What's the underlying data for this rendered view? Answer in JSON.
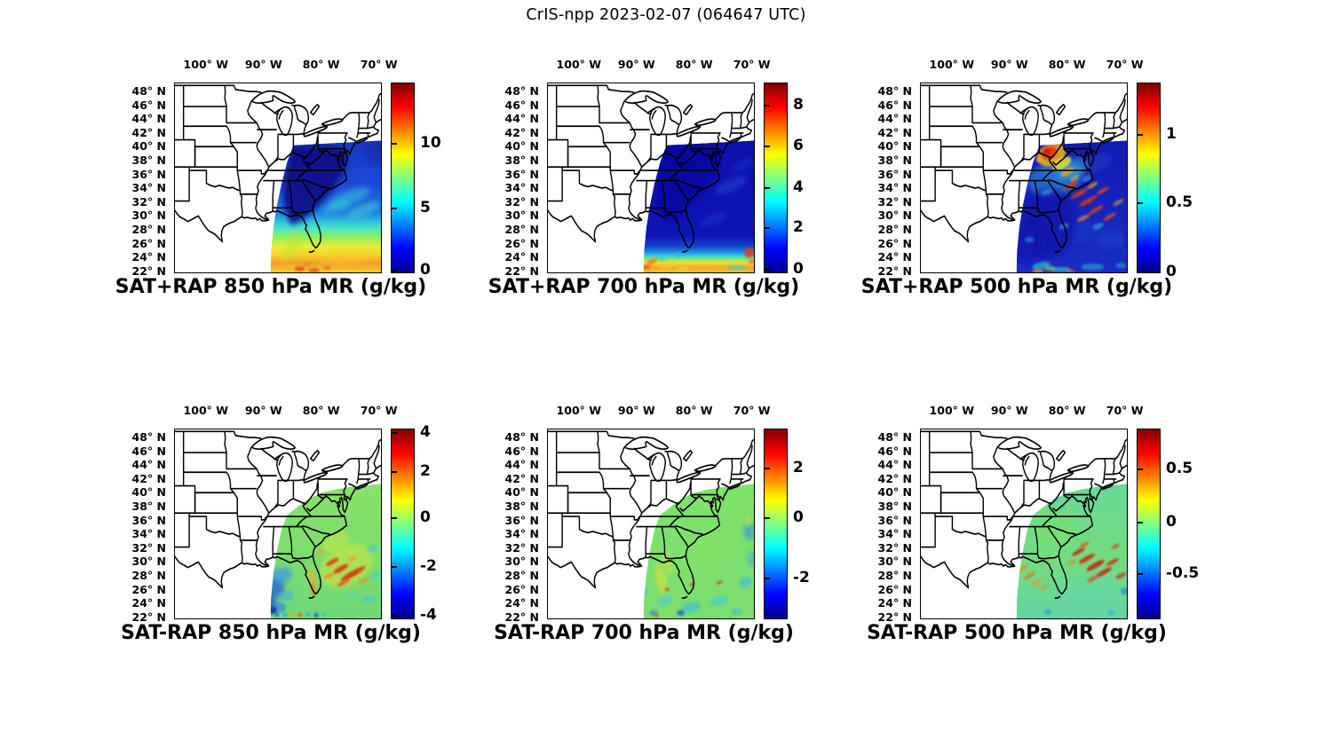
{
  "figure_title": "CrIS-npp 2023-02-07 (064647 UTC)",
  "colormap": {
    "name": "jet",
    "stops": [
      "#00008f",
      "#0000ff",
      "#00ffff",
      "#ffff00",
      "#ff0000",
      "#800000"
    ]
  },
  "axes": {
    "x_ticks": [
      "100° W",
      "90° W",
      "80° W",
      "70° W"
    ],
    "y_ticks": [
      "48° N",
      "46° N",
      "44° N",
      "42° N",
      "40° N",
      "38° N",
      "36° N",
      "34° N",
      "32° N",
      "30° N",
      "28° N",
      "26° N",
      "24° N",
      "22° N"
    ]
  },
  "panels": [
    {
      "id": "sat-plus-rap-850",
      "title": "SAT+RAP 850 hPa MR (g/kg)",
      "colorbar": {
        "ticks": [
          {
            "label": "10",
            "pos": 0.316
          },
          {
            "label": "5",
            "pos": 0.656
          },
          {
            "label": "0",
            "pos": 0.981
          }
        ]
      }
    },
    {
      "id": "sat-plus-rap-700",
      "title": "SAT+RAP 700 hPa MR (g/kg)",
      "colorbar": {
        "ticks": [
          {
            "label": "8",
            "pos": 0.116
          },
          {
            "label": "6",
            "pos": 0.33
          },
          {
            "label": "4",
            "pos": 0.549
          },
          {
            "label": "2",
            "pos": 0.758
          },
          {
            "label": "0",
            "pos": 0.977
          }
        ]
      }
    },
    {
      "id": "sat-plus-rap-500",
      "title": "SAT+RAP 500 hPa MR (g/kg)",
      "colorbar": {
        "ticks": [
          {
            "label": "1",
            "pos": 0.27
          },
          {
            "label": "0.5",
            "pos": 0.628
          },
          {
            "label": "0",
            "pos": 0.991
          }
        ]
      }
    },
    {
      "id": "sat-minus-rap-850",
      "title": "SAT-RAP 850 hPa MR (g/kg)",
      "colorbar": {
        "ticks": [
          {
            "label": "4",
            "pos": 0.017
          },
          {
            "label": "2",
            "pos": 0.223
          },
          {
            "label": "0",
            "pos": 0.465
          },
          {
            "label": "-2",
            "pos": 0.721
          },
          {
            "label": "-4",
            "pos": 0.977
          }
        ]
      }
    },
    {
      "id": "sat-minus-rap-700",
      "title": "SAT-RAP 700 hPa MR (g/kg)",
      "colorbar": {
        "ticks": [
          {
            "label": "2",
            "pos": 0.205
          },
          {
            "label": "0",
            "pos": 0.465
          },
          {
            "label": "-2",
            "pos": 0.781
          }
        ]
      }
    },
    {
      "id": "sat-minus-rap-500",
      "title": "SAT-RAP 500 hPa MR (g/kg)",
      "colorbar": {
        "ticks": [
          {
            "label": "0.5",
            "pos": 0.209
          },
          {
            "label": "0",
            "pos": 0.488
          },
          {
            "label": "-0.5",
            "pos": 0.758
          }
        ]
      }
    }
  ],
  "chart_data": [
    {
      "type": "heatmap",
      "title": "SAT+RAP 850 hPa MR (g/kg)",
      "level_hPa": 850,
      "quantity": "water vapor mixing ratio",
      "units": "g/kg",
      "x_axis": {
        "ticks_deg_west": [
          100,
          90,
          80,
          70
        ],
        "range_deg_west": [
          105.5,
          69.5
        ]
      },
      "y_axis": {
        "ticks_deg_north": [
          48,
          46,
          44,
          42,
          40,
          38,
          36,
          34,
          32,
          30,
          28,
          26,
          24,
          22
        ],
        "range_deg_north": [
          21.7,
          49.3
        ]
      },
      "colorbar": {
        "colormap": "jet",
        "ticks": [
          0,
          5,
          10
        ],
        "range_approx": [
          0,
          15
        ],
        "position": "right"
      },
      "features": "CrIS swath over eastern US and western Atlantic; ~0-2 g/kg (dark blue) over Ohio valley and Appalachians, 3-6 g/kg (cyan) over mid-latitude Atlantic, rising to 8-12 g/kg (yellow/orange with red arcs) south of ~27N near Florida and the Gulf Stream."
    },
    {
      "type": "heatmap",
      "title": "SAT+RAP 700 hPa MR (g/kg)",
      "level_hPa": 700,
      "quantity": "water vapor mixing ratio",
      "units": "g/kg",
      "x_axis": {
        "ticks_deg_west": [
          100,
          90,
          80,
          70
        ],
        "range_deg_west": [
          105.5,
          69.5
        ]
      },
      "y_axis": {
        "ticks_deg_north": [
          48,
          46,
          44,
          42,
          40,
          38,
          36,
          34,
          32,
          30,
          28,
          26,
          24,
          22
        ],
        "range_deg_north": [
          21.7,
          49.3
        ]
      },
      "colorbar": {
        "colormap": "jet",
        "ticks": [
          0,
          2,
          4,
          6,
          8
        ],
        "range_approx": [
          0,
          9
        ],
        "position": "right"
      },
      "features": "Swath nearly uniform 0-2 g/kg (dark blue); narrow band of 4-8 g/kg (cyan-yellow-orange arcs) along southern edge below ~24.5N with red spots at the SE corner."
    },
    {
      "type": "heatmap",
      "title": "SAT+RAP 500 hPa MR (g/kg)",
      "level_hPa": 500,
      "quantity": "water vapor mixing ratio",
      "units": "g/kg",
      "x_axis": {
        "ticks_deg_west": [
          100,
          90,
          80,
          70
        ],
        "range_deg_west": [
          105.5,
          69.5
        ]
      },
      "y_axis": {
        "ticks_deg_north": [
          48,
          46,
          44,
          42,
          40,
          38,
          36,
          34,
          32,
          30,
          28,
          26,
          24,
          22
        ],
        "range_deg_north": [
          21.7,
          49.3
        ]
      },
      "colorbar": {
        "colormap": "jet",
        "ticks": [
          0,
          0.5,
          1
        ],
        "range_approx": [
          0,
          1.4
        ],
        "position": "right"
      },
      "features": "Mostly 0-0.3 g/kg (blue); local maximum ~1-1.4 g/kg (red/orange blob) over Ohio near 40N 83W with yellow fringe into West Virginia; streaky 0.7-1.2 g/kg filaments over the Atlantic 27-35N; cyan arcs along the southern edge."
    },
    {
      "type": "heatmap",
      "title": "SAT-RAP 850 hPa MR (g/kg)",
      "level_hPa": 850,
      "quantity": "mixing ratio difference (satellite minus RAP model)",
      "units": "g/kg",
      "x_axis": {
        "ticks_deg_west": [
          100,
          90,
          80,
          70
        ],
        "range_deg_west": [
          105.5,
          69.5
        ]
      },
      "y_axis": {
        "ticks_deg_north": [
          48,
          46,
          44,
          42,
          40,
          38,
          36,
          34,
          32,
          30,
          28,
          26,
          24,
          22
        ],
        "range_deg_north": [
          21.7,
          49.3
        ]
      },
      "colorbar": {
        "colormap": "jet",
        "ticks": [
          -4,
          -2,
          0,
          2,
          4
        ],
        "range_approx": [
          -4.1,
          4.1
        ],
        "position": "right"
      },
      "features": "Differences near 0 (green) over most of the swath; +2 to +4 g/kg (orange/red streaks) over Gulf Stream waters ~27-33N; -2 to -4 g/kg (blue patches and dots) over the eastern Gulf of Mexico and along the 22N swath edge."
    },
    {
      "type": "heatmap",
      "title": "SAT-RAP 700 hPa MR (g/kg)",
      "level_hPa": 700,
      "quantity": "mixing ratio difference (satellite minus RAP model)",
      "units": "g/kg",
      "x_axis": {
        "ticks_deg_west": [
          100,
          90,
          80,
          70
        ],
        "range_deg_west": [
          105.5,
          69.5
        ]
      },
      "y_axis": {
        "ticks_deg_north": [
          48,
          46,
          44,
          42,
          40,
          38,
          36,
          34,
          32,
          30,
          28,
          26,
          24,
          22
        ],
        "range_deg_north": [
          21.7,
          49.3
        ]
      },
      "colorbar": {
        "colormap": "jet",
        "ticks": [
          -2,
          0,
          2
        ],
        "range_approx": [
          -3.5,
          3.5
        ],
        "position": "right"
      },
      "features": "Mostly near 0 (green); scattered -1 to -3 g/kg (cyan/blue) patches south of ~26N and along the eastern swath edge; narrow yellow band near the Florida panhandle; isolated small red specks."
    },
    {
      "type": "heatmap",
      "title": "SAT-RAP 500 hPa MR (g/kg)",
      "level_hPa": 500,
      "quantity": "mixing ratio difference (satellite minus RAP model)",
      "units": "g/kg",
      "x_axis": {
        "ticks_deg_west": [
          100,
          90,
          80,
          70
        ],
        "range_deg_west": [
          105.5,
          69.5
        ]
      },
      "y_axis": {
        "ticks_deg_north": [
          48,
          46,
          44,
          42,
          40,
          38,
          36,
          34,
          32,
          30,
          28,
          26,
          24,
          22
        ],
        "range_deg_north": [
          21.7,
          49.3
        ]
      },
      "colorbar": {
        "colormap": "jet",
        "ticks": [
          -0.5,
          0,
          0.5
        ],
        "range_approx": [
          -0.9,
          0.9
        ],
        "position": "right"
      },
      "features": "Near 0 (green/cyan) overall; +0.5 to +0.9 g/kg (dark red streaks) over the Atlantic ~28-34N; orange streaks over the NE Gulf of Mexico; scattered -0.2 to -0.5 (blue) dots near the swath edges and over Ohio/Virginia."
    }
  ]
}
